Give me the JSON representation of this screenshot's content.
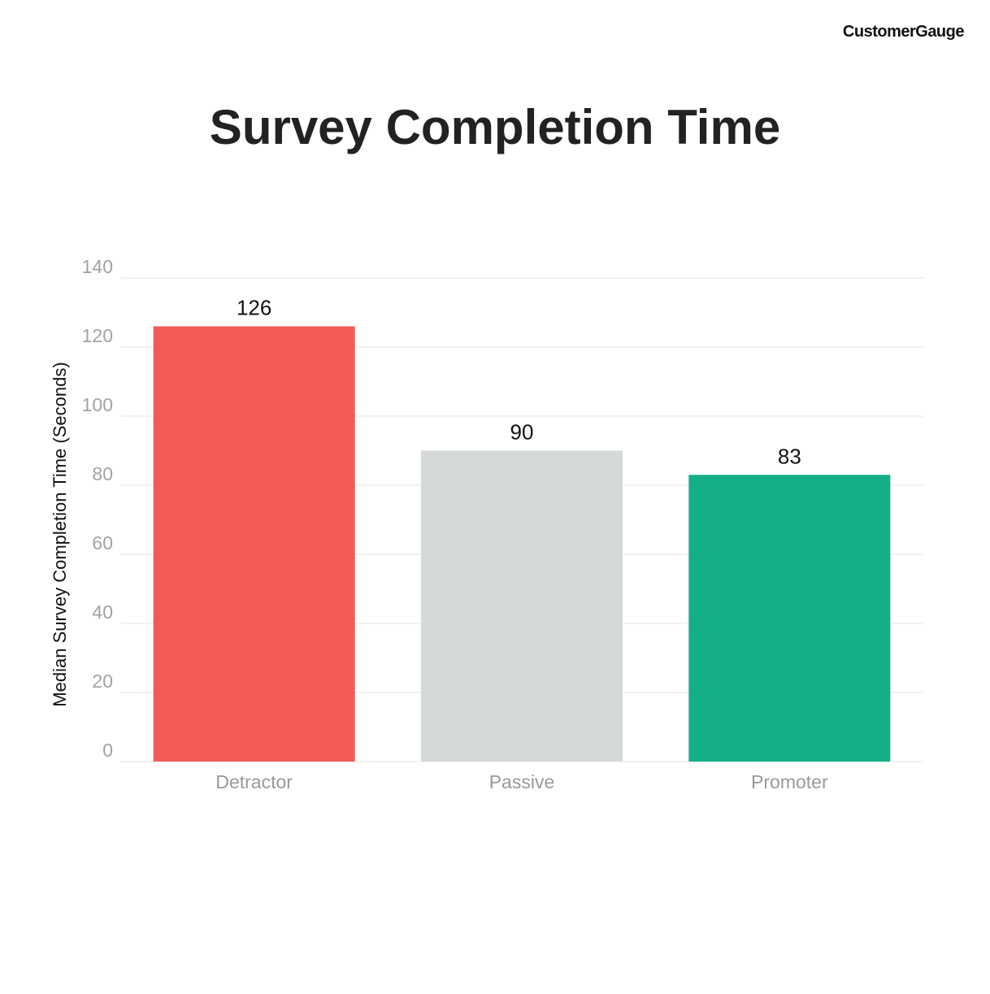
{
  "brand": {
    "name": "CustomerGauge"
  },
  "chart_data": {
    "type": "bar",
    "title": "Survey Completion Time",
    "xlabel": "",
    "ylabel": "Median Survey Completion Time (Seconds)",
    "categories": [
      "Detractor",
      "Passive",
      "Promoter"
    ],
    "values": [
      126,
      90,
      83
    ],
    "data_labels": [
      "126",
      "90",
      "83"
    ],
    "colors": [
      "#f25a58",
      "#d5d9da",
      "#14ae88"
    ],
    "ylim": [
      0,
      140
    ],
    "yticks": [
      0,
      20,
      40,
      60,
      80,
      100,
      120,
      140
    ],
    "grid": true,
    "legend": "none"
  }
}
